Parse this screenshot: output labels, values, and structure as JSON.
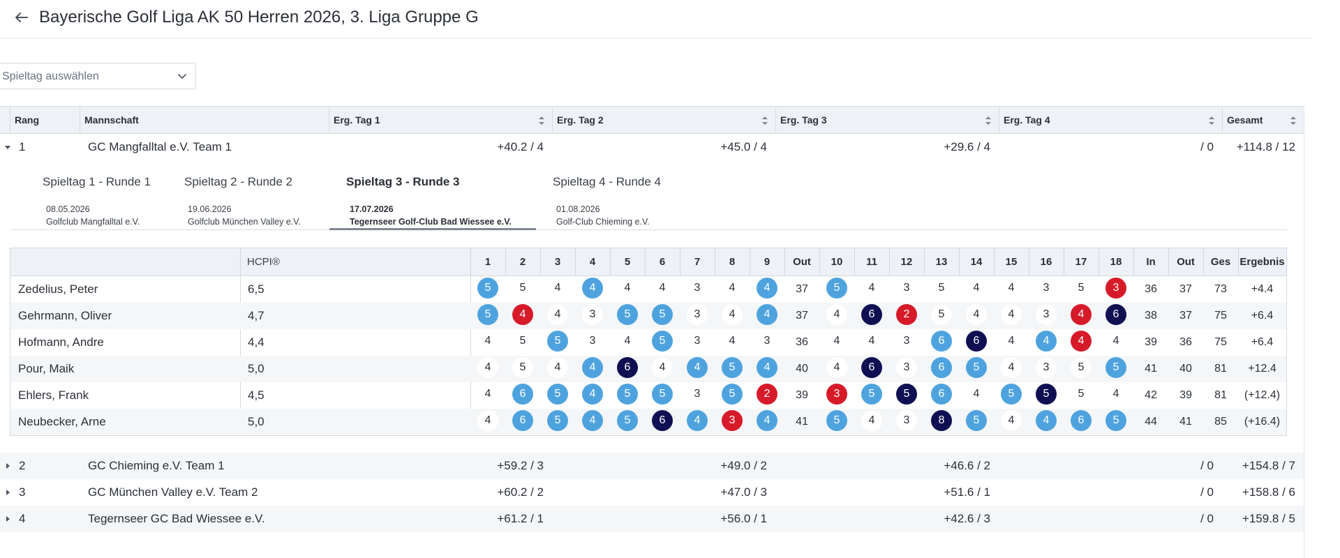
{
  "header": {
    "title": "Bayerische Golf Liga AK 50 Herren 2026, 3. Liga Gruppe G"
  },
  "select": {
    "placeholder": "Spieltag auswählen"
  },
  "standings": {
    "headers": {
      "rank": "Rang",
      "team": "Mannschaft",
      "day1": "Erg. Tag 1",
      "day2": "Erg. Tag 2",
      "day3": "Erg. Tag 3",
      "day4": "Erg. Tag 4",
      "total": "Gesamt"
    },
    "rows": [
      {
        "rank": "1",
        "team": "GC Mangfalltal e.V. Team 1",
        "day1": "+40.2 / 4",
        "day2": "+45.0 / 4",
        "day3": "+29.6 / 4",
        "day4": "/ 0",
        "total": "+114.8 / 12",
        "expanded": true
      },
      {
        "rank": "2",
        "team": "GC Chieming e.V. Team 1",
        "day1": "+59.2 / 3",
        "day2": "+49.0 / 2",
        "day3": "+46.6 / 2",
        "day4": "/ 0",
        "total": "+154.8 / 7",
        "expanded": false
      },
      {
        "rank": "3",
        "team": "GC München Valley e.V. Team 2",
        "day1": "+60.2 / 2",
        "day2": "+47.0 / 3",
        "day3": "+51.6 / 1",
        "day4": "/ 0",
        "total": "+158.8 / 6",
        "expanded": false
      },
      {
        "rank": "4",
        "team": "Tegernseer GC Bad Wiessee e.V.",
        "day1": "+61.2 / 1",
        "day2": "+56.0 / 1",
        "day3": "+42.6 / 3",
        "day4": "/ 0",
        "total": "+159.8 / 5",
        "expanded": false
      }
    ]
  },
  "matchdays": [
    {
      "title": "Spieltag 1 - Runde 1",
      "date": "08.05.2026",
      "club": "Golfclub Mangfalltal e.V.",
      "active": false
    },
    {
      "title": "Spieltag 2 - Runde 2",
      "date": "19.06.2026",
      "club": "Golfclub München Valley e.V.",
      "active": false
    },
    {
      "title": "Spieltag 3 - Runde 3",
      "date": "17.07.2026",
      "club": "Tegernseer Golf-Club Bad Wiessee e.V.",
      "active": true
    },
    {
      "title": "Spieltag 4 - Runde 4",
      "date": "01.08.2026",
      "club": "Golf-Club Chieming e.V.",
      "active": false
    }
  ],
  "scorecard": {
    "hcp_header": "HCPI®",
    "columns": [
      "1",
      "2",
      "3",
      "4",
      "5",
      "6",
      "7",
      "8",
      "9",
      "Out",
      "10",
      "11",
      "12",
      "13",
      "14",
      "15",
      "16",
      "17",
      "18",
      "In",
      "Out",
      "Ges",
      "Ergebnis"
    ],
    "legend_colors": {
      "light": "#4ea3de",
      "red": "#d61a2a",
      "navy": "#0f0f52"
    },
    "players": [
      {
        "name": "Zedelius, Peter",
        "hcp": "6,5",
        "holes": [
          [
            5,
            "light"
          ],
          [
            5,
            ""
          ],
          [
            4,
            ""
          ],
          [
            4,
            "light"
          ],
          [
            4,
            ""
          ],
          [
            4,
            ""
          ],
          [
            3,
            ""
          ],
          [
            4,
            ""
          ],
          [
            4,
            "light"
          ],
          [
            5,
            "light"
          ],
          [
            4,
            ""
          ],
          [
            3,
            ""
          ],
          [
            5,
            ""
          ],
          [
            4,
            ""
          ],
          [
            4,
            ""
          ],
          [
            3,
            ""
          ],
          [
            5,
            ""
          ],
          [
            3,
            "red"
          ]
        ],
        "out": "37",
        "in": "36",
        "out2": "37",
        "total": "73",
        "result": "+4.4"
      },
      {
        "name": "Gehrmann, Oliver",
        "hcp": "4,7",
        "holes": [
          [
            5,
            "light"
          ],
          [
            4,
            "red"
          ],
          [
            4,
            ""
          ],
          [
            3,
            ""
          ],
          [
            5,
            "light"
          ],
          [
            5,
            "light"
          ],
          [
            3,
            ""
          ],
          [
            4,
            ""
          ],
          [
            4,
            "light"
          ],
          [
            4,
            ""
          ],
          [
            6,
            "navy"
          ],
          [
            2,
            "red"
          ],
          [
            5,
            ""
          ],
          [
            4,
            ""
          ],
          [
            4,
            ""
          ],
          [
            3,
            ""
          ],
          [
            4,
            "red"
          ],
          [
            6,
            "navy"
          ]
        ],
        "out": "37",
        "in": "38",
        "out2": "37",
        "total": "75",
        "result": "+6.4"
      },
      {
        "name": "Hofmann, Andre",
        "hcp": "4,4",
        "holes": [
          [
            4,
            ""
          ],
          [
            5,
            ""
          ],
          [
            5,
            "light"
          ],
          [
            3,
            ""
          ],
          [
            4,
            ""
          ],
          [
            5,
            "light"
          ],
          [
            3,
            ""
          ],
          [
            4,
            ""
          ],
          [
            3,
            ""
          ],
          [
            4,
            ""
          ],
          [
            4,
            ""
          ],
          [
            3,
            ""
          ],
          [
            6,
            "light"
          ],
          [
            6,
            "navy"
          ],
          [
            4,
            ""
          ],
          [
            4,
            "light"
          ],
          [
            4,
            "red"
          ],
          [
            4,
            ""
          ]
        ],
        "out": "36",
        "in": "39",
        "out2": "36",
        "total": "75",
        "result": "+6.4"
      },
      {
        "name": "Pour, Maik",
        "hcp": "5,0",
        "holes": [
          [
            4,
            ""
          ],
          [
            5,
            ""
          ],
          [
            4,
            ""
          ],
          [
            4,
            "light"
          ],
          [
            6,
            "navy"
          ],
          [
            4,
            ""
          ],
          [
            4,
            "light"
          ],
          [
            5,
            "light"
          ],
          [
            4,
            "light"
          ],
          [
            4,
            ""
          ],
          [
            6,
            "navy"
          ],
          [
            3,
            ""
          ],
          [
            6,
            "light"
          ],
          [
            5,
            "light"
          ],
          [
            4,
            ""
          ],
          [
            3,
            ""
          ],
          [
            5,
            ""
          ],
          [
            5,
            "light"
          ]
        ],
        "out": "40",
        "in": "41",
        "out2": "40",
        "total": "81",
        "result": "+12.4"
      },
      {
        "name": "Ehlers, Frank",
        "hcp": "4,5",
        "holes": [
          [
            4,
            ""
          ],
          [
            6,
            "light"
          ],
          [
            5,
            "light"
          ],
          [
            4,
            "light"
          ],
          [
            5,
            "light"
          ],
          [
            5,
            "light"
          ],
          [
            3,
            ""
          ],
          [
            5,
            "light"
          ],
          [
            2,
            "red"
          ],
          [
            3,
            "red"
          ],
          [
            5,
            "light"
          ],
          [
            5,
            "navy"
          ],
          [
            6,
            "light"
          ],
          [
            4,
            ""
          ],
          [
            5,
            "light"
          ],
          [
            5,
            "navy"
          ],
          [
            5,
            ""
          ],
          [
            4,
            ""
          ]
        ],
        "out": "39",
        "in": "42",
        "out2": "39",
        "total": "81",
        "result": "(+12.4)"
      },
      {
        "name": "Neubecker, Arne",
        "hcp": "5,0",
        "holes": [
          [
            4,
            ""
          ],
          [
            6,
            "light"
          ],
          [
            5,
            "light"
          ],
          [
            4,
            "light"
          ],
          [
            5,
            "light"
          ],
          [
            6,
            "navy"
          ],
          [
            4,
            "light"
          ],
          [
            3,
            "red"
          ],
          [
            4,
            "light"
          ],
          [
            5,
            "light"
          ],
          [
            4,
            ""
          ],
          [
            3,
            ""
          ],
          [
            8,
            "navy"
          ],
          [
            5,
            "light"
          ],
          [
            4,
            ""
          ],
          [
            4,
            "light"
          ],
          [
            6,
            "light"
          ],
          [
            5,
            "light"
          ]
        ],
        "out": "41",
        "in": "44",
        "out2": "41",
        "total": "85",
        "result": "(+16.4)"
      }
    ]
  }
}
